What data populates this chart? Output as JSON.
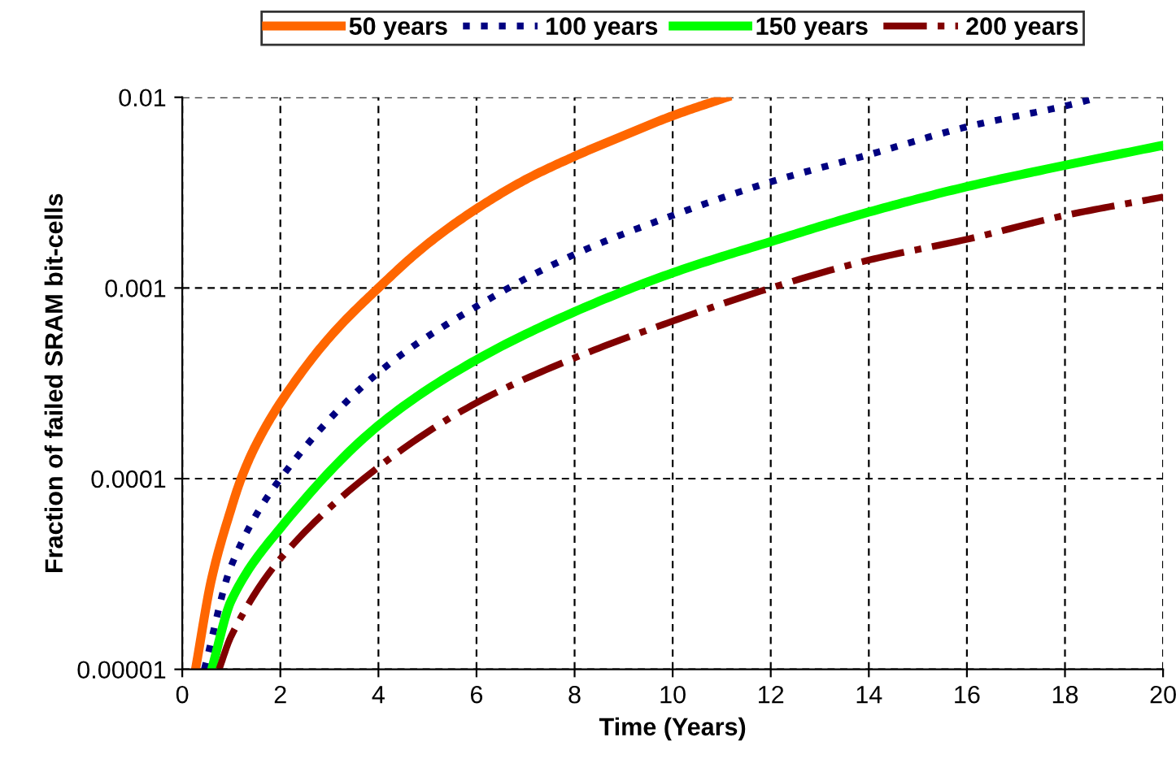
{
  "chart_data": {
    "type": "line",
    "xlabel": "Time (Years)",
    "ylabel": "Fraction of failed SRAM bit-cells",
    "log": "y",
    "grid": true,
    "legend": "top",
    "xlim": [
      0,
      20
    ],
    "xticks": [
      0,
      2,
      4,
      6,
      8,
      10,
      12,
      14,
      16,
      18,
      20
    ],
    "ylim": [
      1e-05,
      0.01
    ],
    "yticks": [
      {
        "value": 1e-05,
        "label": "0.00001"
      },
      {
        "value": 0.0001,
        "label": "0.0001"
      },
      {
        "value": 0.001,
        "label": "0.001"
      },
      {
        "value": 0.01,
        "label": "0.01"
      }
    ],
    "series": [
      {
        "name": "50 years",
        "color": "#ff6600",
        "line_style": "solid",
        "x": [
          0.27,
          0.6,
          1,
          1.2,
          1.5,
          2,
          3,
          4,
          5,
          6,
          7,
          8,
          9,
          10,
          11.1
        ],
        "values": [
          1e-05,
          3e-05,
          7e-05,
          0.0001,
          0.00015,
          0.00025,
          0.00055,
          0.001,
          0.0017,
          0.0026,
          0.0037,
          0.0049,
          0.0063,
          0.008,
          0.01
        ]
      },
      {
        "name": "100 years",
        "color": "#000080",
        "line_style": "dotted",
        "x": [
          0.45,
          1,
          2,
          4,
          6,
          8,
          10,
          12,
          14,
          16,
          18,
          18.7
        ],
        "values": [
          1e-05,
          3.5e-05,
          0.0001,
          0.00036,
          0.0008,
          0.0015,
          0.0024,
          0.0036,
          0.005,
          0.007,
          0.009,
          0.01
        ]
      },
      {
        "name": "150 years",
        "color": "#00ff00",
        "line_style": "solid",
        "x": [
          0.6,
          1,
          2,
          4,
          6,
          8,
          10,
          12,
          14,
          16,
          18,
          20
        ],
        "values": [
          1e-05,
          2.3e-05,
          5.5e-05,
          0.00019,
          0.00042,
          0.00075,
          0.0012,
          0.00175,
          0.0025,
          0.0034,
          0.0044,
          0.0056
        ]
      },
      {
        "name": "200 years",
        "color": "#800000",
        "line_style": "dashdot",
        "x": [
          0.75,
          1,
          2,
          4,
          6,
          8,
          10,
          12,
          14,
          16,
          18,
          20
        ],
        "values": [
          1e-05,
          1.5e-05,
          3.8e-05,
          0.000115,
          0.00025,
          0.00043,
          0.00067,
          0.001,
          0.0014,
          0.0018,
          0.0024,
          0.003
        ]
      }
    ]
  }
}
